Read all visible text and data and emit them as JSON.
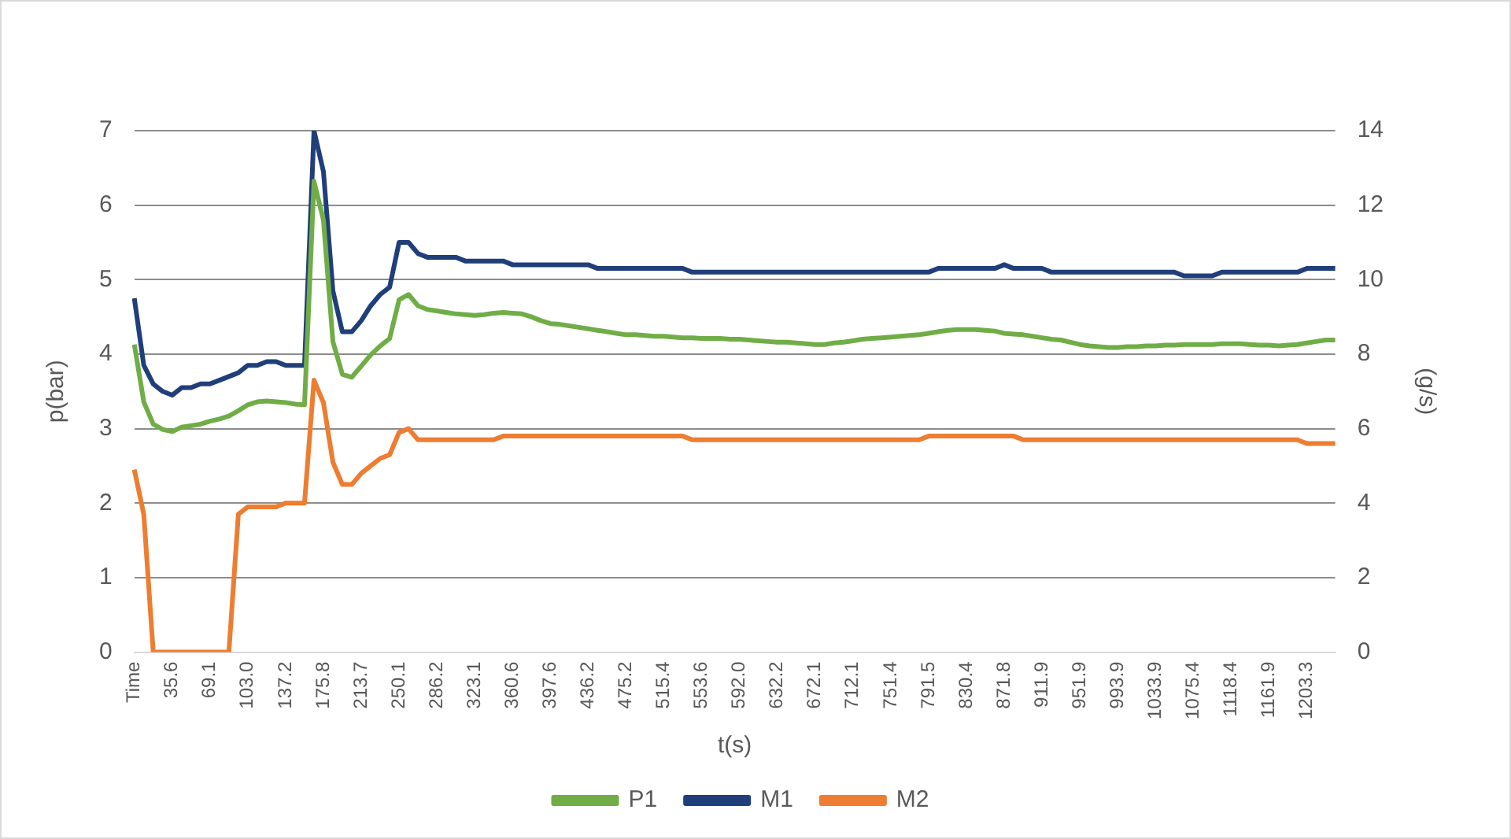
{
  "chart_data": {
    "type": "line",
    "xlabel": "t(s)",
    "ylabel": "p(bar)",
    "y2label": "(g/s)",
    "grid": "y",
    "legend": "bottom",
    "categories": [
      "Time",
      null,
      null,
      null,
      "35.6",
      null,
      null,
      null,
      "69.1",
      null,
      null,
      null,
      "103.0",
      null,
      null,
      null,
      "137.2",
      null,
      null,
      null,
      "175.8",
      null,
      null,
      null,
      "213.7",
      null,
      null,
      null,
      "250.1",
      null,
      null,
      null,
      "286.2",
      null,
      null,
      null,
      "323.1",
      null,
      null,
      null,
      "360.6",
      null,
      null,
      null,
      "397.6",
      null,
      null,
      null,
      "436.2",
      null,
      null,
      null,
      "475.2",
      null,
      null,
      null,
      "515.4",
      null,
      null,
      null,
      "553.6",
      null,
      null,
      null,
      "592.0",
      null,
      null,
      null,
      "632.2",
      null,
      null,
      null,
      "672.1",
      null,
      null,
      null,
      "712.1",
      null,
      null,
      null,
      "751.4",
      null,
      null,
      null,
      "791.5",
      null,
      null,
      null,
      "830.4",
      null,
      null,
      null,
      "871.8",
      null,
      null,
      null,
      "911.9",
      null,
      null,
      null,
      "951.9",
      null,
      null,
      null,
      "993.9",
      null,
      null,
      null,
      "1033.9",
      null,
      null,
      null,
      "1075.4",
      null,
      null,
      null,
      "1118.4",
      null,
      null,
      null,
      "1161.9",
      null,
      null,
      null,
      "1203.3",
      null,
      null,
      null
    ],
    "ylim": [
      0,
      7
    ],
    "yticks": [
      0,
      1,
      2,
      3,
      4,
      5,
      6,
      7
    ],
    "y2lim": [
      0,
      14
    ],
    "y2ticks": [
      0,
      2,
      4,
      6,
      8,
      10,
      12,
      14
    ],
    "series": [
      {
        "name": "P1",
        "color": "#70ad47",
        "values": [
          4.13,
          3.36,
          3.06,
          2.99,
          2.96,
          3.02,
          3.04,
          3.06,
          3.1,
          3.13,
          3.17,
          3.24,
          3.32,
          3.36,
          3.37,
          3.36,
          3.35,
          3.33,
          3.32,
          6.32,
          5.8,
          4.17,
          3.73,
          3.69,
          3.84,
          3.99,
          4.11,
          4.21,
          4.73,
          4.8,
          4.65,
          4.6,
          4.58,
          4.56,
          4.54,
          4.53,
          4.52,
          4.53,
          4.55,
          4.56,
          4.55,
          4.54,
          4.5,
          4.45,
          4.41,
          4.4,
          4.38,
          4.36,
          4.34,
          4.32,
          4.3,
          4.28,
          4.26,
          4.26,
          4.25,
          4.24,
          4.24,
          4.23,
          4.22,
          4.22,
          4.21,
          4.21,
          4.21,
          4.2,
          4.2,
          4.19,
          4.18,
          4.17,
          4.16,
          4.16,
          4.15,
          4.14,
          4.13,
          4.13,
          4.15,
          4.16,
          4.18,
          4.2,
          4.21,
          4.22,
          4.23,
          4.24,
          4.25,
          4.26,
          4.28,
          4.3,
          4.32,
          4.33,
          4.33,
          4.33,
          4.32,
          4.31,
          4.28,
          4.27,
          4.26,
          4.24,
          4.22,
          4.2,
          4.19,
          4.16,
          4.13,
          4.11,
          4.1,
          4.09,
          4.09,
          4.1,
          4.1,
          4.11,
          4.11,
          4.12,
          4.12,
          4.13,
          4.13,
          4.13,
          4.13,
          4.14,
          4.14,
          4.14,
          4.13,
          4.12,
          4.12,
          4.11,
          4.12,
          4.13,
          4.15,
          4.17,
          4.19,
          4.19
        ]
      },
      {
        "name": "M1",
        "color": "#203f7a",
        "axis": "y2",
        "values": [
          9.5,
          7.7,
          7.2,
          7.0,
          6.9,
          7.1,
          7.1,
          7.2,
          7.2,
          7.3,
          7.4,
          7.5,
          7.7,
          7.7,
          7.8,
          7.8,
          7.7,
          7.7,
          7.7,
          14.0,
          12.9,
          9.7,
          8.6,
          8.6,
          8.9,
          9.3,
          9.6,
          9.8,
          11.0,
          11.0,
          10.7,
          10.6,
          10.6,
          10.6,
          10.6,
          10.5,
          10.5,
          10.5,
          10.5,
          10.5,
          10.4,
          10.4,
          10.4,
          10.4,
          10.4,
          10.4,
          10.4,
          10.4,
          10.4,
          10.3,
          10.3,
          10.3,
          10.3,
          10.3,
          10.3,
          10.3,
          10.3,
          10.3,
          10.3,
          10.2,
          10.2,
          10.2,
          10.2,
          10.2,
          10.2,
          10.2,
          10.2,
          10.2,
          10.2,
          10.2,
          10.2,
          10.2,
          10.2,
          10.2,
          10.2,
          10.2,
          10.2,
          10.2,
          10.2,
          10.2,
          10.2,
          10.2,
          10.2,
          10.2,
          10.2,
          10.3,
          10.3,
          10.3,
          10.3,
          10.3,
          10.3,
          10.3,
          10.4,
          10.3,
          10.3,
          10.3,
          10.3,
          10.2,
          10.2,
          10.2,
          10.2,
          10.2,
          10.2,
          10.2,
          10.2,
          10.2,
          10.2,
          10.2,
          10.2,
          10.2,
          10.2,
          10.1,
          10.1,
          10.1,
          10.1,
          10.2,
          10.2,
          10.2,
          10.2,
          10.2,
          10.2,
          10.2,
          10.2,
          10.2,
          10.3,
          10.3,
          10.3,
          10.3
        ]
      },
      {
        "name": "M2",
        "color": "#ed7d31",
        "axis": "y2",
        "values": [
          4.9,
          3.7,
          0,
          0,
          0,
          0,
          0,
          0,
          0,
          0,
          0,
          3.7,
          3.9,
          3.9,
          3.9,
          3.9,
          4.0,
          4.0,
          4.0,
          7.3,
          6.7,
          5.1,
          4.5,
          4.5,
          4.8,
          5.0,
          5.2,
          5.3,
          5.9,
          6.0,
          5.7,
          5.7,
          5.7,
          5.7,
          5.7,
          5.7,
          5.7,
          5.7,
          5.7,
          5.8,
          5.8,
          5.8,
          5.8,
          5.8,
          5.8,
          5.8,
          5.8,
          5.8,
          5.8,
          5.8,
          5.8,
          5.8,
          5.8,
          5.8,
          5.8,
          5.8,
          5.8,
          5.8,
          5.8,
          5.7,
          5.7,
          5.7,
          5.7,
          5.7,
          5.7,
          5.7,
          5.7,
          5.7,
          5.7,
          5.7,
          5.7,
          5.7,
          5.7,
          5.7,
          5.7,
          5.7,
          5.7,
          5.7,
          5.7,
          5.7,
          5.7,
          5.7,
          5.7,
          5.7,
          5.8,
          5.8,
          5.8,
          5.8,
          5.8,
          5.8,
          5.8,
          5.8,
          5.8,
          5.8,
          5.7,
          5.7,
          5.7,
          5.7,
          5.7,
          5.7,
          5.7,
          5.7,
          5.7,
          5.7,
          5.7,
          5.7,
          5.7,
          5.7,
          5.7,
          5.7,
          5.7,
          5.7,
          5.7,
          5.7,
          5.7,
          5.7,
          5.7,
          5.7,
          5.7,
          5.7,
          5.7,
          5.7,
          5.7,
          5.7,
          5.6,
          5.6,
          5.6,
          5.6
        ]
      }
    ]
  }
}
